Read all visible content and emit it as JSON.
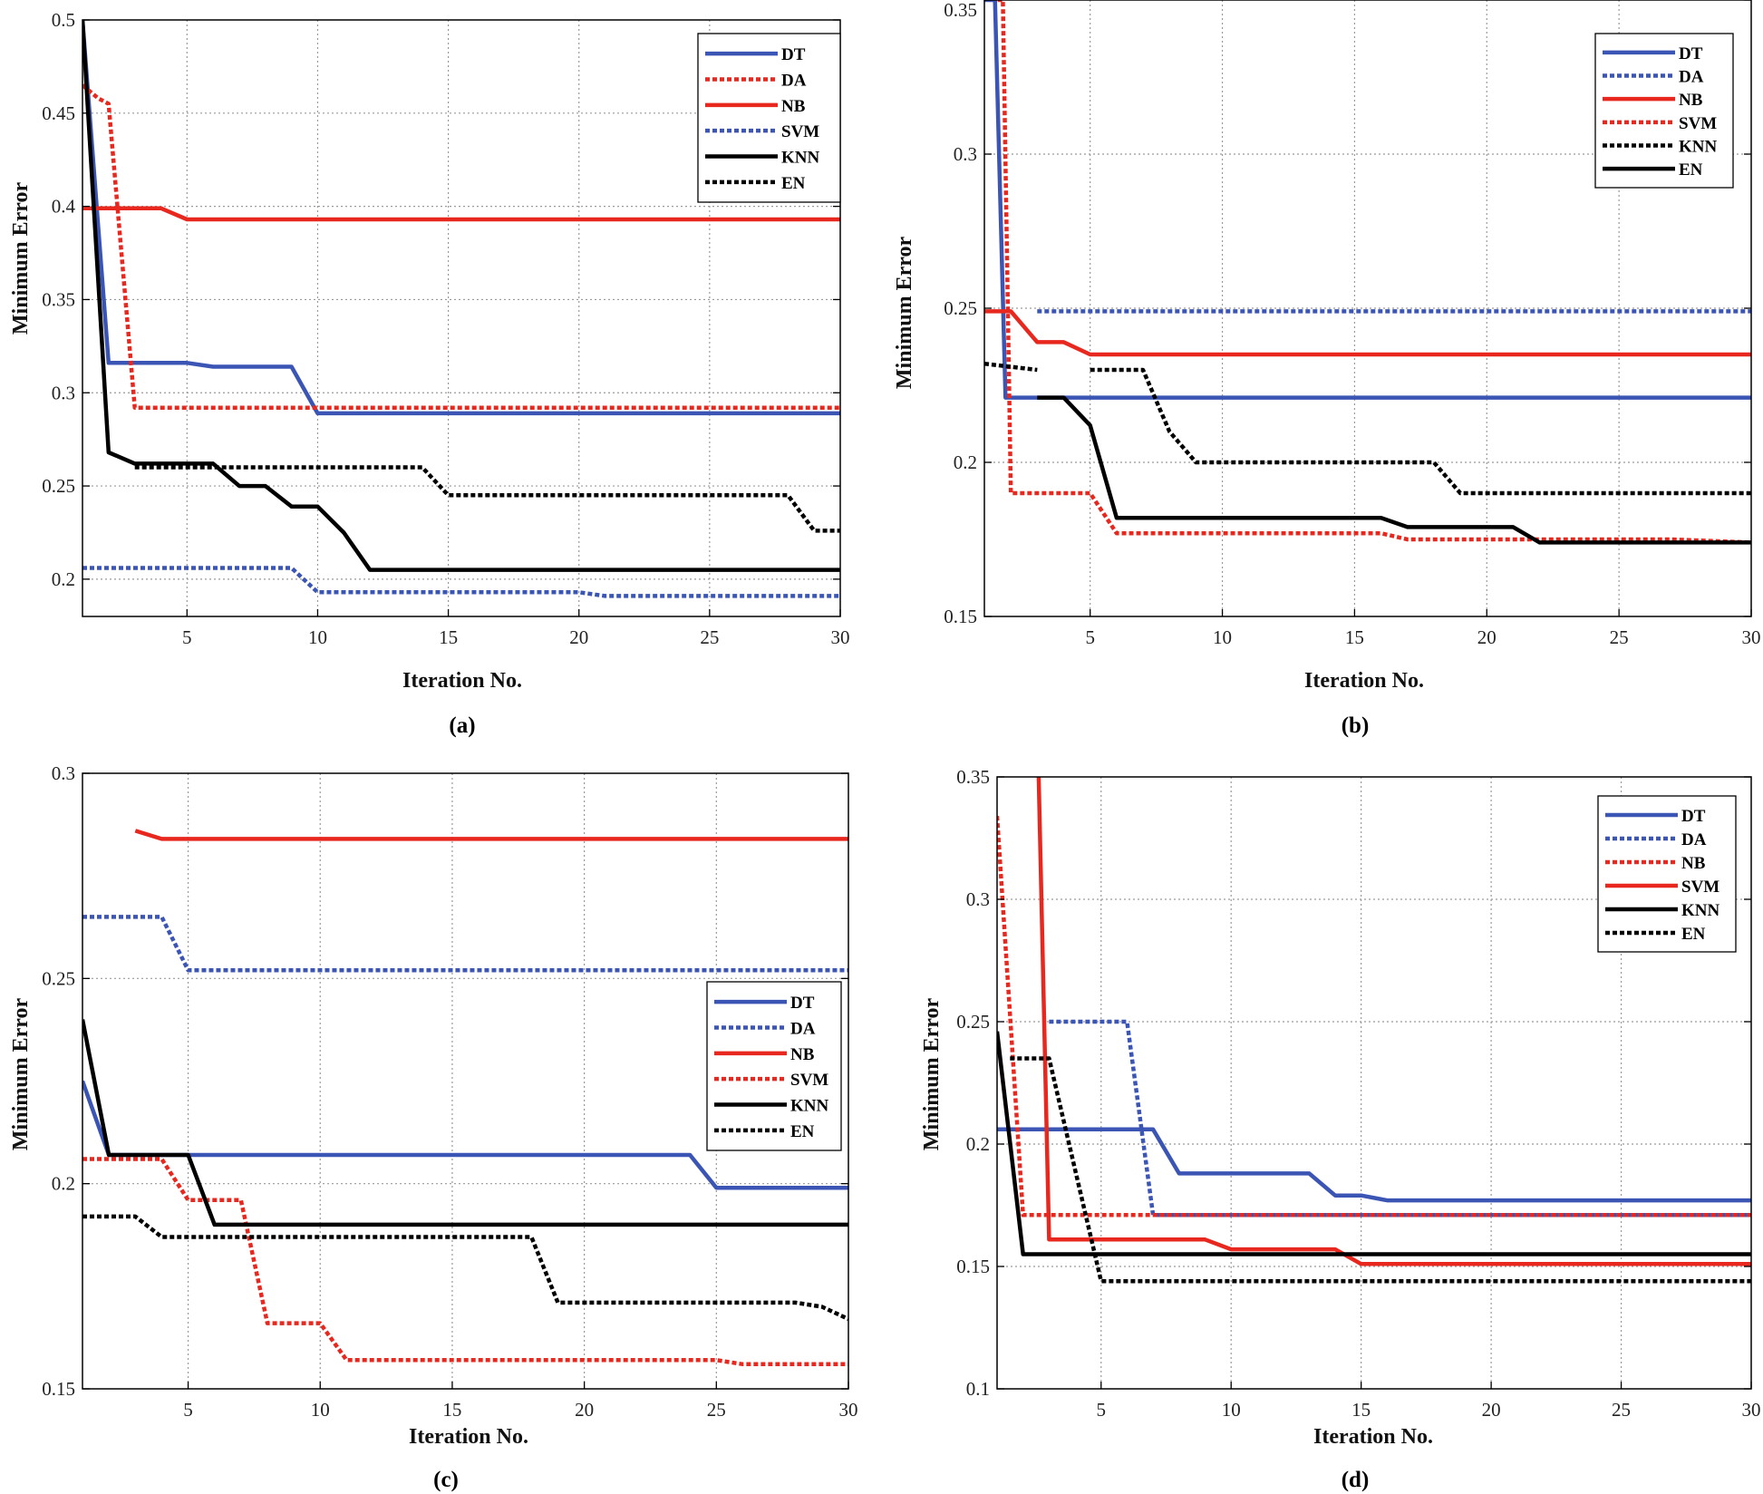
{
  "colors": {
    "blue": "#3b55b5",
    "red": "#e8281e",
    "black": "#000000",
    "grid": "#9a9a9a"
  },
  "chart_data": [
    {
      "type": "line",
      "caption": "(a)",
      "xlabel": "Iteration No.",
      "ylabel": "Minimum Error",
      "xlim": [
        1,
        30
      ],
      "ylim": [
        0.18,
        0.5
      ],
      "xticks": [
        5,
        10,
        15,
        20,
        25,
        30
      ],
      "xtick_labels": [
        "5",
        "10",
        "15",
        "20",
        "25",
        "30"
      ],
      "yticks": [
        0.2,
        0.25,
        0.3,
        0.35,
        0.4,
        0.45,
        0.5
      ],
      "ytick_labels": [
        "0.2",
        "0.25",
        "0.3",
        "0.35",
        "0.4",
        "0.45",
        "0.5"
      ],
      "legend_position": "top-right",
      "series": [
        {
          "name": "DT",
          "color": "#3b55b5",
          "style": "solid",
          "x": [
            1,
            2,
            5,
            6,
            9,
            10,
            30
          ],
          "y": [
            0.5,
            0.316,
            0.316,
            0.314,
            0.314,
            0.289,
            0.289
          ]
        },
        {
          "name": "DA",
          "color": "#e8281e",
          "style": "dotted",
          "x": [
            1,
            1.6,
            2,
            3,
            30
          ],
          "y": [
            0.465,
            0.458,
            0.455,
            0.292,
            0.292
          ]
        },
        {
          "name": "NB",
          "color": "#e8281e",
          "style": "solid",
          "x": [
            1,
            4,
            5,
            30
          ],
          "y": [
            0.399,
            0.399,
            0.393,
            0.393
          ]
        },
        {
          "name": "SVM",
          "color": "#3b55b5",
          "style": "dotted",
          "x": [
            1,
            9,
            10,
            20,
            21,
            30
          ],
          "y": [
            0.206,
            0.206,
            0.193,
            0.193,
            0.191,
            0.191
          ]
        },
        {
          "name": "KNN",
          "color": "#000000",
          "style": "solid",
          "x": [
            1,
            2,
            3,
            6,
            7,
            8,
            9,
            10,
            11,
            12,
            30
          ],
          "y": [
            0.5,
            0.268,
            0.262,
            0.262,
            0.25,
            0.25,
            0.239,
            0.239,
            0.225,
            0.205,
            0.205
          ]
        },
        {
          "name": "EN",
          "color": "#000000",
          "style": "dotted",
          "x": [
            3,
            14,
            15,
            28,
            29,
            30
          ],
          "y": [
            0.26,
            0.26,
            0.245,
            0.245,
            0.226,
            0.226
          ]
        }
      ]
    },
    {
      "type": "line",
      "caption": "(b)",
      "xlabel": "Iteration No.",
      "ylabel": "Minimum Error",
      "xlim": [
        1,
        30
      ],
      "ylim": [
        0.15,
        0.35
      ],
      "xticks": [
        5,
        10,
        15,
        20,
        25,
        30
      ],
      "xtick_labels": [
        "5",
        "10",
        "15",
        "20",
        "25",
        "30"
      ],
      "yticks": [
        0.15,
        0.2,
        0.25,
        0.3,
        0.35
      ],
      "ytick_labels": [
        "0.15",
        "0.2",
        "0.25",
        "0.3",
        "0.35"
      ],
      "legend_position": "top-right",
      "series": [
        {
          "name": "DT",
          "color": "#3b55b5",
          "style": "solid",
          "x": [
            1,
            1.4,
            1.8,
            30
          ],
          "y": [
            0.35,
            0.35,
            0.221,
            0.221
          ]
        },
        {
          "name": "DA",
          "color": "#3b55b5",
          "style": "dotted",
          "x": [
            3,
            30
          ],
          "y": [
            0.249,
            0.249
          ]
        },
        {
          "name": "NB",
          "color": "#e8281e",
          "style": "solid",
          "x": [
            1,
            2,
            3,
            4,
            5,
            30
          ],
          "y": [
            0.249,
            0.249,
            0.239,
            0.239,
            0.235,
            0.235
          ]
        },
        {
          "name": "SVM",
          "color": "#e8281e",
          "style": "dotted",
          "x": [
            1.5,
            1.7,
            2,
            5,
            6,
            16,
            17,
            27,
            30
          ],
          "y": [
            0.35,
            0.35,
            0.19,
            0.19,
            0.177,
            0.177,
            0.175,
            0.175,
            0.174
          ]
        },
        {
          "name": "KNN",
          "color": "#000000",
          "style": "dotted",
          "x": [
            1,
            3
          ],
          "y": [
            0.232,
            0.23
          ]
        },
        {
          "name": "EN",
          "color": "#000000",
          "style": "solid",
          "x": [
            3,
            4,
            5,
            6,
            16,
            17,
            21,
            22,
            30
          ],
          "y": [
            0.221,
            0.221,
            0.212,
            0.182,
            0.182,
            0.179,
            0.179,
            0.174,
            0.174
          ]
        },
        {
          "name": "",
          "color": "#000000",
          "style": "dotted",
          "x": [
            5,
            7,
            8,
            9,
            18,
            19,
            30
          ],
          "y": [
            0.23,
            0.23,
            0.21,
            0.2,
            0.2,
            0.19,
            0.19
          ]
        }
      ]
    },
    {
      "type": "line",
      "caption": "(c)",
      "xlabel": "Iteration No.",
      "ylabel": "Minimum Error",
      "xlim": [
        1,
        30
      ],
      "ylim": [
        0.15,
        0.3
      ],
      "xticks": [
        5,
        10,
        15,
        20,
        25,
        30
      ],
      "xtick_labels": [
        "5",
        "10",
        "15",
        "20",
        "25",
        "30"
      ],
      "yticks": [
        0.15,
        0.2,
        0.25,
        0.3
      ],
      "ytick_labels": [
        "0.15",
        "0.2",
        "0.25",
        "0.3"
      ],
      "legend_position": "center-right",
      "series": [
        {
          "name": "DT",
          "color": "#3b55b5",
          "style": "solid",
          "x": [
            1,
            2,
            24,
            25,
            30
          ],
          "y": [
            0.225,
            0.207,
            0.207,
            0.199,
            0.199
          ]
        },
        {
          "name": "DA",
          "color": "#3b55b5",
          "style": "dotted",
          "x": [
            1,
            4,
            5,
            30
          ],
          "y": [
            0.265,
            0.265,
            0.252,
            0.252
          ]
        },
        {
          "name": "NB",
          "color": "#e8281e",
          "style": "solid",
          "x": [
            3,
            4,
            30
          ],
          "y": [
            0.286,
            0.284,
            0.284
          ]
        },
        {
          "name": "SVM",
          "color": "#e8281e",
          "style": "dotted",
          "x": [
            1,
            4,
            5,
            7,
            8,
            10,
            11,
            25,
            26,
            30
          ],
          "y": [
            0.206,
            0.206,
            0.196,
            0.196,
            0.166,
            0.166,
            0.157,
            0.157,
            0.156,
            0.156
          ]
        },
        {
          "name": "KNN",
          "color": "#000000",
          "style": "solid",
          "x": [
            1,
            2,
            5,
            6,
            30
          ],
          "y": [
            0.24,
            0.207,
            0.207,
            0.19,
            0.19
          ]
        },
        {
          "name": "EN",
          "color": "#000000",
          "style": "dotted",
          "x": [
            1,
            3,
            4,
            18,
            19,
            28,
            29,
            30
          ],
          "y": [
            0.192,
            0.192,
            0.187,
            0.187,
            0.171,
            0.171,
            0.17,
            0.167
          ]
        }
      ]
    },
    {
      "type": "line",
      "caption": "(d)",
      "xlabel": "Iteration No.",
      "ylabel": "Minimum Error",
      "xlim": [
        1,
        30
      ],
      "ylim": [
        0.1,
        0.35
      ],
      "xticks": [
        5,
        10,
        15,
        20,
        25,
        30
      ],
      "xtick_labels": [
        "5",
        "10",
        "15",
        "20",
        "25",
        "30"
      ],
      "yticks": [
        0.1,
        0.15,
        0.2,
        0.25,
        0.3,
        0.35
      ],
      "ytick_labels": [
        "0.1",
        "0.15",
        "0.2",
        "0.25",
        "0.3",
        "0.35"
      ],
      "legend_position": "top-right",
      "series": [
        {
          "name": "DT",
          "color": "#3b55b5",
          "style": "solid",
          "x": [
            1,
            7,
            8,
            13,
            14,
            15,
            16,
            30
          ],
          "y": [
            0.206,
            0.206,
            0.188,
            0.188,
            0.179,
            0.179,
            0.177,
            0.177
          ]
        },
        {
          "name": "DA",
          "color": "#3b55b5",
          "style": "dotted",
          "x": [
            3,
            6,
            7,
            30
          ],
          "y": [
            0.25,
            0.25,
            0.171,
            0.171
          ]
        },
        {
          "name": "NB",
          "color": "#e8281e",
          "style": "dotted",
          "x": [
            1,
            2,
            30
          ],
          "y": [
            0.334,
            0.171,
            0.171
          ]
        },
        {
          "name": "SVM",
          "color": "#e8281e",
          "style": "solid",
          "x": [
            2.6,
            3,
            9,
            10,
            14,
            15,
            30
          ],
          "y": [
            0.35,
            0.161,
            0.161,
            0.157,
            0.157,
            0.151,
            0.151
          ]
        },
        {
          "name": "KNN",
          "color": "#000000",
          "style": "solid",
          "x": [
            1,
            2,
            30
          ],
          "y": [
            0.246,
            0.155,
            0.155
          ]
        },
        {
          "name": "EN",
          "color": "#000000",
          "style": "dotted",
          "x": [
            1.5,
            3,
            5,
            30
          ],
          "y": [
            0.235,
            0.235,
            0.144,
            0.144
          ]
        }
      ]
    }
  ]
}
